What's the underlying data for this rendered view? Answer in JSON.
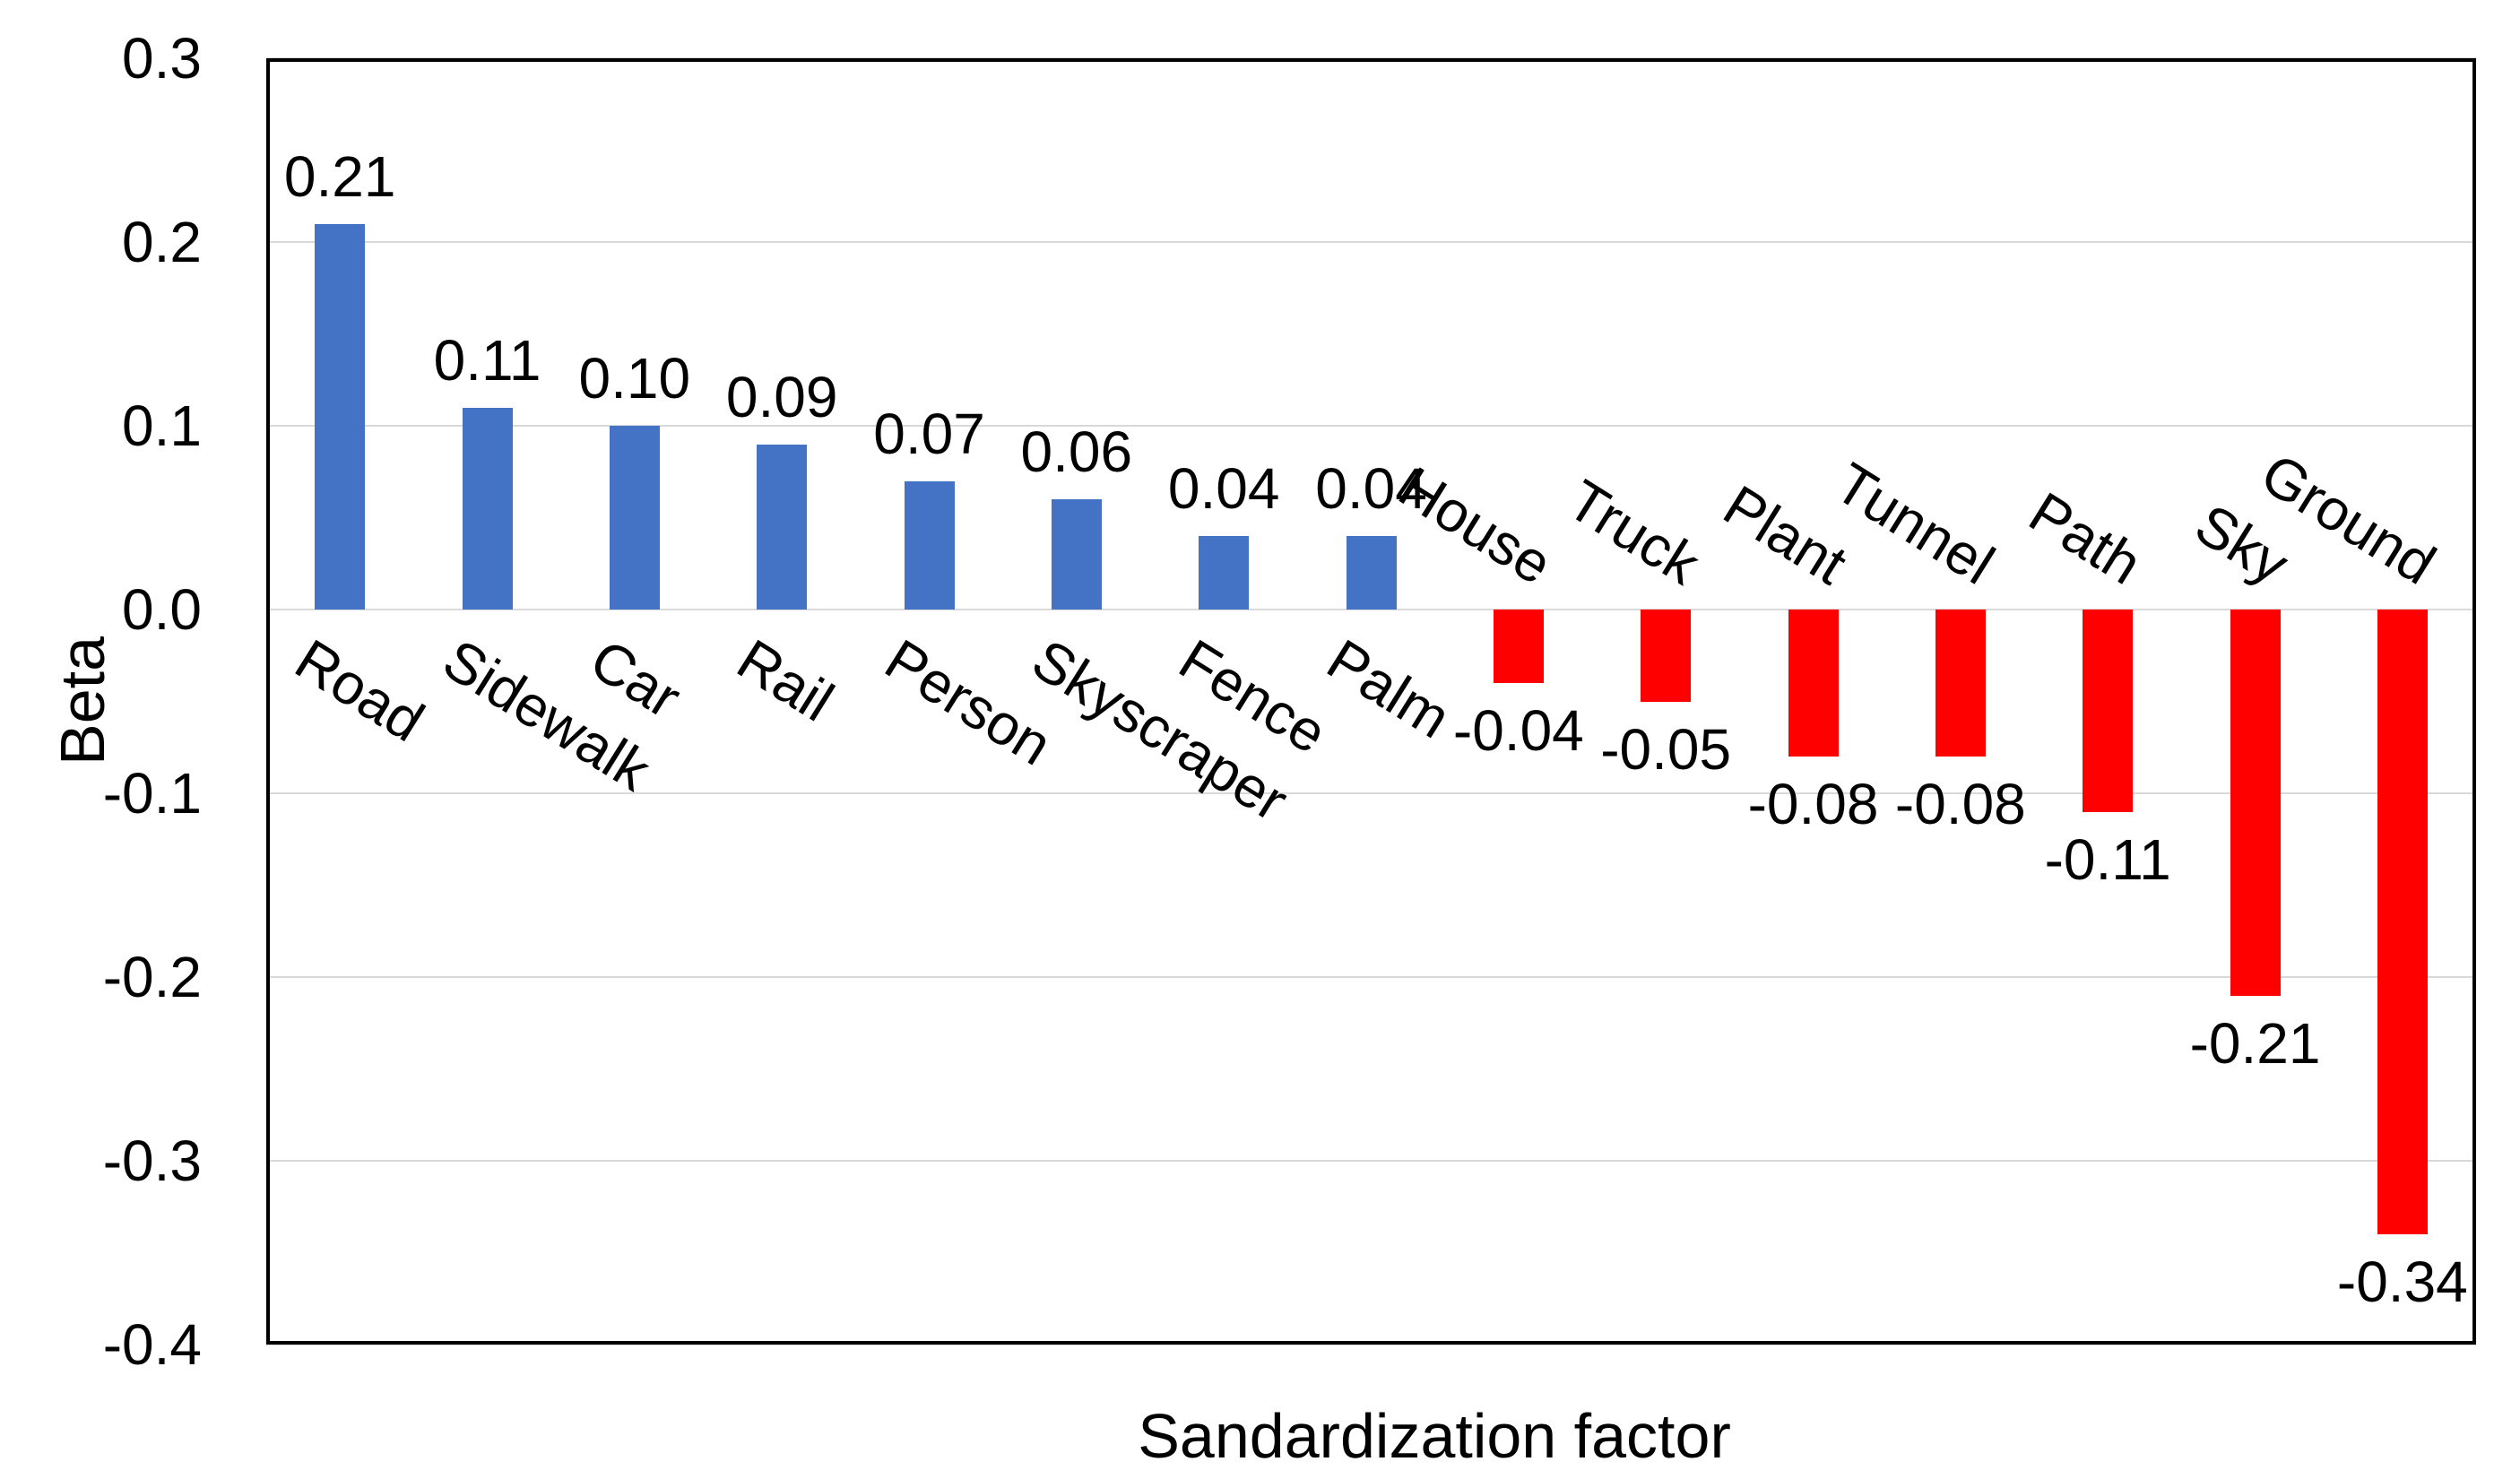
{
  "chart_data": {
    "type": "bar",
    "title": "",
    "xlabel": "Sandardization factor",
    "ylabel": "Beta",
    "categories": [
      "Road",
      "Sidewalk",
      "Car",
      "Rail",
      "Person",
      "Skyscraper",
      "Fence",
      "Palm",
      "House",
      "Truck",
      "Plant",
      "Tunnel",
      "Path",
      "Sky",
      "Ground"
    ],
    "values": [
      0.21,
      0.11,
      0.1,
      0.09,
      0.07,
      0.06,
      0.04,
      0.04,
      -0.04,
      -0.05,
      -0.08,
      -0.08,
      -0.11,
      -0.21,
      -0.34
    ],
    "value_labels": [
      "0.21",
      "0.11",
      "0.10",
      "0.09",
      "0.07",
      "0.06",
      "0.04",
      "0.04",
      "-0.04",
      "-0.05",
      "-0.08",
      "-0.08",
      "-0.11",
      "-0.21",
      "-0.34"
    ],
    "ytick_labels": [
      "0.3",
      "0.2",
      "0.1",
      "0.0",
      "-0.1",
      "-0.2",
      "-0.3",
      "-0.4"
    ],
    "ytick_values": [
      0.3,
      0.2,
      0.1,
      0.0,
      -0.1,
      -0.2,
      -0.3,
      -0.4
    ],
    "ylim": [
      -0.4,
      0.3
    ],
    "grid": "horizontal",
    "legend": "none",
    "positive_color": "#4472C4",
    "negative_color": "#FF0000",
    "gridline_color": "#D9D9D9",
    "border_color": "#000000",
    "text_color": "#000000"
  }
}
